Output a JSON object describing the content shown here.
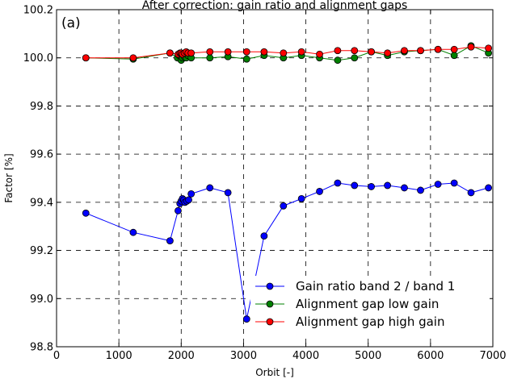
{
  "chart_data": {
    "type": "line",
    "title": "After correction: gain ratio and alignment gaps",
    "panel_label": "(a)",
    "xlabel": "Orbit [-]",
    "ylabel": "Factor [%]",
    "xlim": [
      0,
      7000
    ],
    "ylim": [
      98.8,
      100.2
    ],
    "xticks": [
      0,
      1000,
      2000,
      3000,
      4000,
      5000,
      6000,
      7000
    ],
    "yticks": [
      98.8,
      99.0,
      99.2,
      99.4,
      99.6,
      99.8,
      100.0,
      100.2
    ],
    "ytick_labels": [
      "98.8",
      "99.0",
      "99.2",
      "99.4",
      "99.6",
      "99.8",
      "100.0",
      "100.2"
    ],
    "grid": true,
    "legend_position": "lower-right",
    "series": [
      {
        "name": "Gain ratio band 2 / band 1",
        "color": "#0000ff",
        "x": [
          470,
          1230,
          1820,
          1950,
          1980,
          2000,
          2020,
          2040,
          2060,
          2090,
          2120,
          2160,
          2460,
          2750,
          3050,
          3330,
          3640,
          3930,
          4220,
          4510,
          4780,
          5050,
          5310,
          5580,
          5840,
          6120,
          6380,
          6650,
          6930
        ],
        "y": [
          99.355,
          99.275,
          99.24,
          99.365,
          99.395,
          99.405,
          99.415,
          99.41,
          99.4,
          99.405,
          99.41,
          99.435,
          99.46,
          99.44,
          98.915,
          99.26,
          99.385,
          99.415,
          99.445,
          99.48,
          99.47,
          99.465,
          99.47,
          99.46,
          99.45,
          99.475,
          99.48,
          99.44,
          99.46
        ]
      },
      {
        "name": "Alignment gap low gain",
        "color": "#008000",
        "x": [
          470,
          1230,
          1820,
          1940,
          1970,
          2000,
          2020,
          2050,
          2080,
          2110,
          2160,
          2460,
          2750,
          3050,
          3330,
          3640,
          3930,
          4220,
          4510,
          4780,
          5050,
          5310,
          5580,
          5840,
          6120,
          6380,
          6650,
          6930
        ],
        "y": [
          100.0,
          99.995,
          100.02,
          100.0,
          100.01,
          99.99,
          100.0,
          100.005,
          100.0,
          100.01,
          100.0,
          100.0,
          100.005,
          99.995,
          100.01,
          100.0,
          100.01,
          100.0,
          99.99,
          100.0,
          100.025,
          100.01,
          100.025,
          100.03,
          100.035,
          100.01,
          100.05,
          100.02
        ]
      },
      {
        "name": "Alignment gap high gain",
        "color": "#ff0000",
        "x": [
          470,
          1230,
          1820,
          1950,
          1980,
          2000,
          2020,
          2050,
          2080,
          2110,
          2160,
          2460,
          2750,
          3050,
          3330,
          3640,
          3930,
          4220,
          4510,
          4780,
          5050,
          5310,
          5580,
          5840,
          6120,
          6380,
          6650,
          6930
        ],
        "y": [
          100.0,
          100.0,
          100.02,
          100.015,
          100.02,
          100.02,
          100.015,
          100.02,
          100.025,
          100.02,
          100.02,
          100.025,
          100.025,
          100.025,
          100.025,
          100.02,
          100.025,
          100.015,
          100.03,
          100.03,
          100.025,
          100.02,
          100.03,
          100.03,
          100.035,
          100.035,
          100.045,
          100.04
        ]
      }
    ]
  }
}
